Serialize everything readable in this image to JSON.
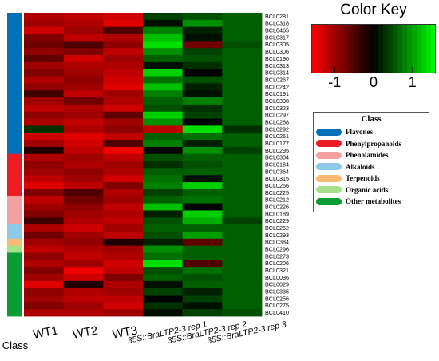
{
  "chart_data": {
    "type": "heatmap",
    "columns": [
      "WT1",
      "WT2",
      "WT3",
      "35S::BraLTP2-3 rep 1",
      "35S::BraLTP2-3 rep 2",
      "35S::BraLTP2-3 rep 3"
    ],
    "class_axis_label": "Class",
    "rows": [
      {
        "id": "BCL0281",
        "class": 0,
        "values": [
          -1.1,
          -1.2,
          -1.3,
          0.4,
          0.5,
          0.6
        ]
      },
      {
        "id": "BCL0318",
        "class": 0,
        "values": [
          -1.0,
          -1.1,
          -1.4,
          0.1,
          0.9,
          0.6
        ]
      },
      {
        "id": "BCL0465",
        "class": 0,
        "values": [
          -1.3,
          -1.0,
          -0.5,
          0.8,
          0.2,
          0.6
        ]
      },
      {
        "id": "BCL0317",
        "class": 0,
        "values": [
          -0.8,
          -1.2,
          -1.1,
          1.2,
          0.1,
          0.6
        ]
      },
      {
        "id": "BCL0305",
        "class": 0,
        "values": [
          -0.7,
          -0.5,
          -0.9,
          1.4,
          -0.7,
          0.5
        ]
      },
      {
        "id": "BCL0306",
        "class": 0,
        "values": [
          -0.9,
          -0.8,
          -1.2,
          0.9,
          0.4,
          0.6
        ]
      },
      {
        "id": "BCL0190",
        "class": 0,
        "values": [
          -0.6,
          -1.3,
          -1.0,
          0.6,
          0.5,
          0.6
        ]
      },
      {
        "id": "BCL0313",
        "class": 0,
        "values": [
          -1.0,
          -1.1,
          -1.1,
          0.1,
          0.3,
          0.6
        ]
      },
      {
        "id": "BCL0314",
        "class": 0,
        "values": [
          -0.8,
          -1.0,
          -1.2,
          1.3,
          0.0,
          0.6
        ]
      },
      {
        "id": "BCL0267",
        "class": 0,
        "values": [
          -1.1,
          -0.9,
          -1.3,
          0.7,
          0.5,
          0.6
        ]
      },
      {
        "id": "BCL0242",
        "class": 0,
        "values": [
          -0.9,
          -1.0,
          -1.4,
          1.2,
          0.2,
          0.6
        ]
      },
      {
        "id": "BCL0191",
        "class": 0,
        "values": [
          -0.4,
          -1.2,
          -1.0,
          0.8,
          0.1,
          0.6
        ]
      },
      {
        "id": "BCL0308",
        "class": 0,
        "values": [
          -1.0,
          -0.7,
          -1.1,
          0.6,
          0.8,
          0.6
        ]
      },
      {
        "id": "BCL0323",
        "class": 0,
        "values": [
          -1.2,
          -1.1,
          -1.3,
          0.5,
          0.3,
          0.6
        ]
      },
      {
        "id": "BCL0297",
        "class": 0,
        "values": [
          -0.9,
          -1.0,
          -0.6,
          1.3,
          0.4,
          0.6
        ]
      },
      {
        "id": "BCL0268",
        "class": 0,
        "values": [
          -1.1,
          -1.2,
          -1.0,
          0.9,
          0.0,
          0.6
        ]
      },
      {
        "id": "BCL0292",
        "class": 0,
        "values": [
          0.3,
          -1.1,
          -0.9,
          -1.2,
          1.4,
          0.3
        ]
      },
      {
        "id": "BCL0261",
        "class": 0,
        "values": [
          -1.3,
          -1.4,
          -1.2,
          0.6,
          0.7,
          0.6
        ]
      },
      {
        "id": "BCL0177",
        "class": 0,
        "values": [
          -1.0,
          -1.3,
          -0.5,
          0.8,
          0.2,
          0.6
        ]
      },
      {
        "id": "BCL0295",
        "class": 0,
        "values": [
          -0.2,
          -1.2,
          -1.5,
          0.0,
          0.9,
          0.4
        ]
      },
      {
        "id": "BCL0304",
        "class": 1,
        "values": [
          -1.1,
          -1.0,
          -1.2,
          0.5,
          0.6,
          0.6
        ]
      },
      {
        "id": "BCL0184",
        "class": 1,
        "values": [
          -0.9,
          -1.1,
          -1.0,
          0.3,
          0.5,
          0.6
        ]
      },
      {
        "id": "BCL0364",
        "class": 1,
        "values": [
          -1.0,
          -0.9,
          -1.1,
          0.6,
          0.6,
          0.6
        ]
      },
      {
        "id": "BCL0315",
        "class": 1,
        "values": [
          -1.2,
          -1.0,
          -1.3,
          0.7,
          0.1,
          0.6
        ]
      },
      {
        "id": "BCL0266",
        "class": 1,
        "values": [
          -1.4,
          -1.2,
          -0.8,
          0.8,
          1.3,
          0.6
        ]
      },
      {
        "id": "BCL0225",
        "class": 1,
        "values": [
          -0.8,
          -0.5,
          -1.1,
          0.4,
          0.6,
          0.6
        ]
      },
      {
        "id": "BCL0212",
        "class": 2,
        "values": [
          -1.2,
          -0.7,
          -1.0,
          0.6,
          0.7,
          0.6
        ]
      },
      {
        "id": "BCL0226",
        "class": 2,
        "values": [
          -1.0,
          -0.9,
          -1.2,
          1.2,
          0.0,
          0.6
        ]
      },
      {
        "id": "BCL0189",
        "class": 2,
        "values": [
          -0.8,
          -1.0,
          -1.1,
          0.2,
          1.3,
          0.6
        ]
      },
      {
        "id": "BCL0229",
        "class": 2,
        "values": [
          -0.4,
          -1.1,
          -1.2,
          0.5,
          1.1,
          0.4
        ]
      },
      {
        "id": "BCL0262",
        "class": 3,
        "values": [
          -1.1,
          -1.3,
          -1.0,
          0.6,
          0.6,
          0.6
        ]
      },
      {
        "id": "BCL0293",
        "class": 3,
        "values": [
          -0.7,
          -1.0,
          -1.2,
          0.5,
          1.0,
          0.6
        ]
      },
      {
        "id": "BCL0384",
        "class": 4,
        "values": [
          -1.0,
          -0.9,
          -0.2,
          0.2,
          -0.6,
          0.6
        ]
      },
      {
        "id": "BCL0296",
        "class": 5,
        "values": [
          -1.2,
          -1.1,
          -1.0,
          0.9,
          0.6,
          0.6
        ]
      },
      {
        "id": "BCL0273",
        "class": 6,
        "values": [
          -0.9,
          -1.2,
          -1.1,
          0.7,
          0.6,
          0.6
        ]
      },
      {
        "id": "BCL0206",
        "class": 6,
        "values": [
          -1.1,
          -1.0,
          -1.3,
          1.4,
          -0.5,
          0.6
        ]
      },
      {
        "id": "BCL0321",
        "class": 6,
        "values": [
          -0.8,
          -1.5,
          -1.2,
          0.5,
          0.7,
          0.6
        ]
      },
      {
        "id": "BCL0036",
        "class": 6,
        "values": [
          -1.0,
          -1.3,
          -0.8,
          0.6,
          0.5,
          0.6
        ]
      },
      {
        "id": "BCL0029",
        "class": 6,
        "values": [
          -1.4,
          -0.2,
          -1.1,
          0.1,
          0.6,
          0.6
        ]
      },
      {
        "id": "BCL0335",
        "class": 6,
        "values": [
          -0.9,
          -1.1,
          -1.0,
          0.4,
          0.2,
          0.6
        ]
      },
      {
        "id": "BCL0256",
        "class": 6,
        "values": [
          -1.0,
          -1.2,
          -1.2,
          0.0,
          0.4,
          0.6
        ]
      },
      {
        "id": "BCL0275",
        "class": 6,
        "values": [
          -0.8,
          -1.0,
          -1.3,
          0.3,
          0.1,
          0.6
        ]
      },
      {
        "id": "BCL0410",
        "class": 6,
        "values": [
          -1.1,
          -1.1,
          -1.0,
          0.1,
          0.4,
          0.5
        ]
      }
    ],
    "classes": [
      {
        "name": "Flavones",
        "color": "#0070b8"
      },
      {
        "name": "Phenylpropanoids",
        "color": "#ee1c25"
      },
      {
        "name": "Phenolamides",
        "color": "#f4a0a0"
      },
      {
        "name": "Alkaloids",
        "color": "#8ecae8"
      },
      {
        "name": "Terpenoids",
        "color": "#f7bb73"
      },
      {
        "name": "Organic acids",
        "color": "#a6e08a"
      },
      {
        "name": "Other metabolites",
        "color": "#0a9c35"
      }
    ],
    "legend_title": "Class",
    "color_key": {
      "title": "Color Key",
      "range": [
        -1.6,
        1.6
      ],
      "ticks": [
        -1,
        0,
        1
      ],
      "low_color": "#ff0000",
      "mid_color": "#000000",
      "high_color": "#00ff00"
    }
  }
}
